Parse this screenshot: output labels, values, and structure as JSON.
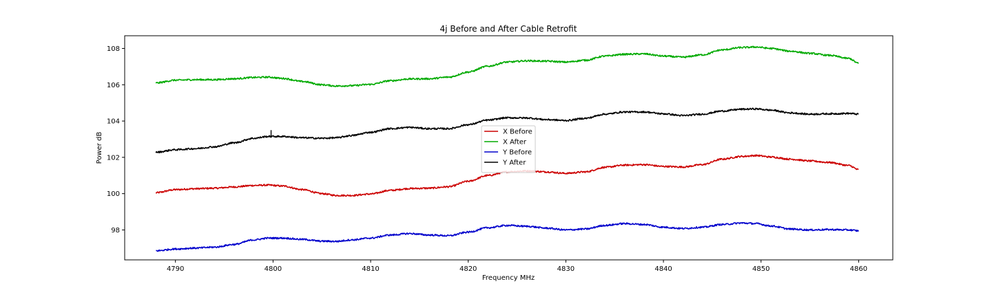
{
  "chart_data": {
    "type": "line",
    "title": "4j Before and After Cable Retrofit",
    "xlabel": "Frequency MHz",
    "ylabel": "Power dB",
    "xlim": [
      4784.8,
      4863.5
    ],
    "ylim": [
      96.35,
      108.7
    ],
    "xticks": [
      4790,
      4800,
      4810,
      4820,
      4830,
      4840,
      4850,
      4860
    ],
    "yticks": [
      98,
      100,
      102,
      104,
      106,
      108
    ],
    "grid": false,
    "legend_position": "center",
    "series": [
      {
        "name": "X Before",
        "color": "#cc0000",
        "points": [
          [
            4788,
            100.05
          ],
          [
            4790,
            100.22
          ],
          [
            4792,
            100.27
          ],
          [
            4794,
            100.3
          ],
          [
            4796,
            100.37
          ],
          [
            4798,
            100.45
          ],
          [
            4799.5,
            100.47
          ],
          [
            4801,
            100.42
          ],
          [
            4803,
            100.22
          ],
          [
            4805,
            100.0
          ],
          [
            4806.5,
            99.9
          ],
          [
            4808,
            99.9
          ],
          [
            4810,
            99.98
          ],
          [
            4812,
            100.18
          ],
          [
            4814,
            100.28
          ],
          [
            4816,
            100.3
          ],
          [
            4818,
            100.38
          ],
          [
            4820,
            100.68
          ],
          [
            4822,
            101.0
          ],
          [
            4824,
            101.2
          ],
          [
            4826,
            101.25
          ],
          [
            4828,
            101.2
          ],
          [
            4830,
            101.12
          ],
          [
            4832,
            101.2
          ],
          [
            4834,
            101.45
          ],
          [
            4836,
            101.57
          ],
          [
            4838,
            101.6
          ],
          [
            4840,
            101.5
          ],
          [
            4842,
            101.47
          ],
          [
            4844,
            101.6
          ],
          [
            4846,
            101.9
          ],
          [
            4848,
            102.05
          ],
          [
            4849.5,
            102.1
          ],
          [
            4851,
            102.02
          ],
          [
            4853,
            101.9
          ],
          [
            4855,
            101.8
          ],
          [
            4857,
            101.72
          ],
          [
            4859,
            101.55
          ],
          [
            4860,
            101.32
          ]
        ]
      },
      {
        "name": "X After",
        "color": "#00aa00",
        "points": [
          [
            4788,
            106.1
          ],
          [
            4790,
            106.25
          ],
          [
            4792,
            106.28
          ],
          [
            4794,
            106.28
          ],
          [
            4796,
            106.33
          ],
          [
            4798,
            106.4
          ],
          [
            4799.5,
            106.42
          ],
          [
            4801,
            106.35
          ],
          [
            4803,
            106.18
          ],
          [
            4805,
            106.0
          ],
          [
            4806.5,
            105.93
          ],
          [
            4808,
            105.95
          ],
          [
            4810,
            106.02
          ],
          [
            4812,
            106.22
          ],
          [
            4814,
            106.32
          ],
          [
            4816,
            106.33
          ],
          [
            4818,
            106.42
          ],
          [
            4820,
            106.7
          ],
          [
            4822,
            107.02
          ],
          [
            4824,
            107.25
          ],
          [
            4826,
            107.32
          ],
          [
            4828,
            107.3
          ],
          [
            4830,
            107.25
          ],
          [
            4832,
            107.35
          ],
          [
            4834,
            107.58
          ],
          [
            4836,
            107.68
          ],
          [
            4838,
            107.7
          ],
          [
            4840,
            107.58
          ],
          [
            4842,
            107.52
          ],
          [
            4844,
            107.65
          ],
          [
            4846,
            107.92
          ],
          [
            4848,
            108.05
          ],
          [
            4849.5,
            108.08
          ],
          [
            4851,
            108.0
          ],
          [
            4853,
            107.85
          ],
          [
            4855,
            107.73
          ],
          [
            4857,
            107.62
          ],
          [
            4859,
            107.45
          ],
          [
            4860,
            107.18
          ]
        ]
      },
      {
        "name": "Y Before",
        "color": "#0000cc",
        "points": [
          [
            4788,
            96.85
          ],
          [
            4790,
            96.95
          ],
          [
            4792,
            97.0
          ],
          [
            4794,
            97.05
          ],
          [
            4796,
            97.2
          ],
          [
            4798,
            97.45
          ],
          [
            4799.5,
            97.55
          ],
          [
            4801,
            97.55
          ],
          [
            4803,
            97.48
          ],
          [
            4805,
            97.38
          ],
          [
            4806.5,
            97.37
          ],
          [
            4808,
            97.45
          ],
          [
            4810,
            97.55
          ],
          [
            4812,
            97.72
          ],
          [
            4814,
            97.8
          ],
          [
            4816,
            97.72
          ],
          [
            4818,
            97.68
          ],
          [
            4820,
            97.88
          ],
          [
            4822,
            98.12
          ],
          [
            4824,
            98.25
          ],
          [
            4826,
            98.2
          ],
          [
            4828,
            98.1
          ],
          [
            4830,
            98.0
          ],
          [
            4832,
            98.05
          ],
          [
            4834,
            98.25
          ],
          [
            4836,
            98.35
          ],
          [
            4838,
            98.3
          ],
          [
            4840,
            98.15
          ],
          [
            4842,
            98.08
          ],
          [
            4844,
            98.15
          ],
          [
            4846,
            98.3
          ],
          [
            4848,
            98.38
          ],
          [
            4849.5,
            98.35
          ],
          [
            4851,
            98.22
          ],
          [
            4853,
            98.05
          ],
          [
            4855,
            98.0
          ],
          [
            4857,
            98.02
          ],
          [
            4859,
            98.0
          ],
          [
            4860,
            97.95
          ]
        ]
      },
      {
        "name": "Y After",
        "color": "#000000",
        "points": [
          [
            4788,
            102.28
          ],
          [
            4790,
            102.42
          ],
          [
            4792,
            102.48
          ],
          [
            4794,
            102.58
          ],
          [
            4796,
            102.8
          ],
          [
            4798,
            103.05
          ],
          [
            4799.5,
            103.15
          ],
          [
            4801,
            103.15
          ],
          [
            4803,
            103.08
          ],
          [
            4805,
            103.05
          ],
          [
            4806.5,
            103.08
          ],
          [
            4808,
            103.2
          ],
          [
            4810,
            103.38
          ],
          [
            4812,
            103.58
          ],
          [
            4814,
            103.65
          ],
          [
            4816,
            103.58
          ],
          [
            4818,
            103.58
          ],
          [
            4820,
            103.8
          ],
          [
            4822,
            104.05
          ],
          [
            4824,
            104.18
          ],
          [
            4826,
            104.17
          ],
          [
            4828,
            104.08
          ],
          [
            4830,
            104.03
          ],
          [
            4832,
            104.15
          ],
          [
            4834,
            104.38
          ],
          [
            4836,
            104.5
          ],
          [
            4838,
            104.5
          ],
          [
            4840,
            104.4
          ],
          [
            4842,
            104.3
          ],
          [
            4844,
            104.38
          ],
          [
            4846,
            104.55
          ],
          [
            4848,
            104.65
          ],
          [
            4849.5,
            104.67
          ],
          [
            4851,
            104.6
          ],
          [
            4853,
            104.45
          ],
          [
            4855,
            104.38
          ],
          [
            4857,
            104.4
          ],
          [
            4859,
            104.42
          ],
          [
            4860,
            104.38
          ]
        ]
      }
    ],
    "annotations": [
      {
        "series": "Y After",
        "x": 4799.8,
        "y_low": 103.1,
        "y_high": 103.5
      }
    ]
  }
}
